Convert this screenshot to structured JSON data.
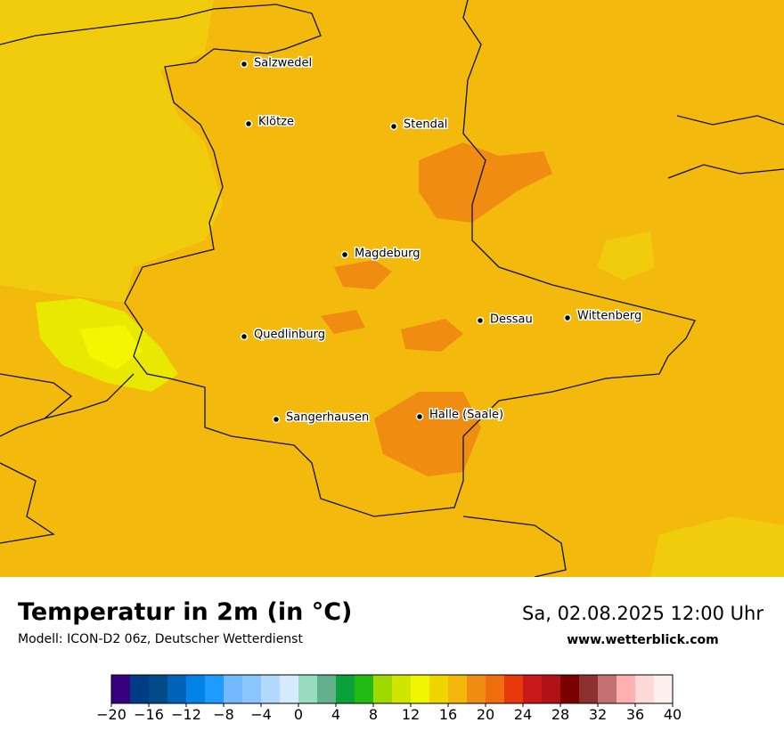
{
  "header": {
    "title": "Temperatur in 2m (in °C)",
    "subtitle": "Modell: ICON-D2 06z, Deutscher Wetterdienst",
    "date": "Sa, 02.08.2025 12:00 Uhr",
    "website": "www.wetterblick.com"
  },
  "cities": [
    {
      "label": "Salzwedel"
    },
    {
      "label": "Klötze"
    },
    {
      "label": "Stendal"
    },
    {
      "label": "Magdeburg"
    },
    {
      "label": "Dessau"
    },
    {
      "label": "Wittenberg"
    },
    {
      "label": "Quedlinburg"
    },
    {
      "label": "Sangerhausen"
    },
    {
      "label": "Halle (Saale)"
    }
  ],
  "colorbar": {
    "range": [
      -20,
      40
    ],
    "colors": [
      "#36007f",
      "#003c86",
      "#004a8a",
      "#0063b8",
      "#0083e6",
      "#1e9bff",
      "#74b9ff",
      "#8ac5ff",
      "#b4d9ff",
      "#d6ebff",
      "#98dcc0",
      "#62b08c",
      "#0aa03a",
      "#22bb14",
      "#a0d900",
      "#cee600",
      "#f0f500",
      "#f0d600",
      "#f2b70a",
      "#f08c12",
      "#f06e10",
      "#e8390c",
      "#c81818",
      "#b01218",
      "#7a0000",
      "#8c3030",
      "#c47070",
      "#ffb0b0",
      "#ffd8d8",
      "#fff0f0"
    ],
    "ticks": [
      {
        "value": -20,
        "label": "−20"
      },
      {
        "value": -16,
        "label": "−16"
      },
      {
        "value": -12,
        "label": "−12"
      },
      {
        "value": -8,
        "label": "−8"
      },
      {
        "value": -4,
        "label": "−4"
      },
      0,
      4,
      8,
      12,
      16,
      20,
      24,
      28,
      32,
      36,
      40
    ]
  }
}
